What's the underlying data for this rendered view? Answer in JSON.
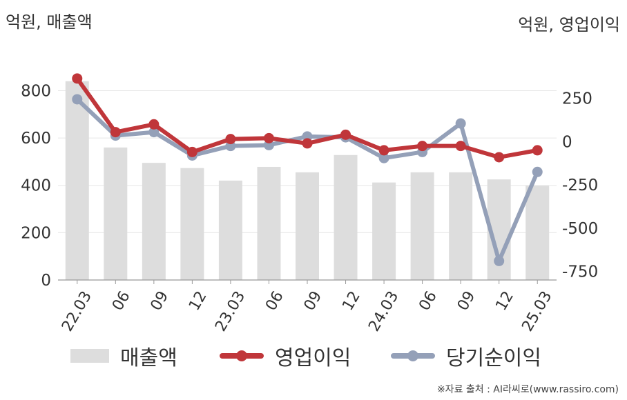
{
  "units": {
    "left": "억원, 매출액",
    "right": "억원, 영업이익"
  },
  "source": "※자료 출처 : AI라씨로(www.rassiro.com)",
  "legend": {
    "revenue": "매출액",
    "operating": "영업이익",
    "net": "당기순이익"
  },
  "colors": {
    "revenue": "#dddddd",
    "operating": "#c0363a",
    "net": "#94a0b8",
    "axis": "#999999",
    "grid": "#e6e6e6"
  },
  "chart_data": {
    "type": "bar",
    "categories": [
      "22.03",
      "06",
      "09",
      "12",
      "23.03",
      "06",
      "09",
      "12",
      "24.03",
      "06",
      "09",
      "12",
      "25.03"
    ],
    "left_axis": {
      "ticks": [
        0,
        200,
        400,
        600,
        800
      ],
      "ylim": [
        0,
        950
      ]
    },
    "right_axis": {
      "ticks": [
        250,
        0,
        -250,
        -500,
        -750
      ],
      "ylim": [
        -800,
        500
      ]
    },
    "series": [
      {
        "name": "매출액",
        "type": "bar",
        "axis": "left",
        "values": [
          840,
          560,
          495,
          473,
          420,
          478,
          455,
          528,
          412,
          455,
          455,
          425,
          398
        ]
      },
      {
        "name": "영업이익",
        "type": "line",
        "axis": "right",
        "values": [
          365,
          55,
          100,
          -60,
          15,
          20,
          -10,
          40,
          -50,
          -25,
          -25,
          -90,
          -50
        ]
      },
      {
        "name": "당기순이익",
        "type": "line",
        "axis": "right",
        "values": [
          245,
          35,
          55,
          -80,
          -25,
          -20,
          30,
          25,
          -95,
          -60,
          105,
          -690,
          -175
        ]
      }
    ]
  }
}
